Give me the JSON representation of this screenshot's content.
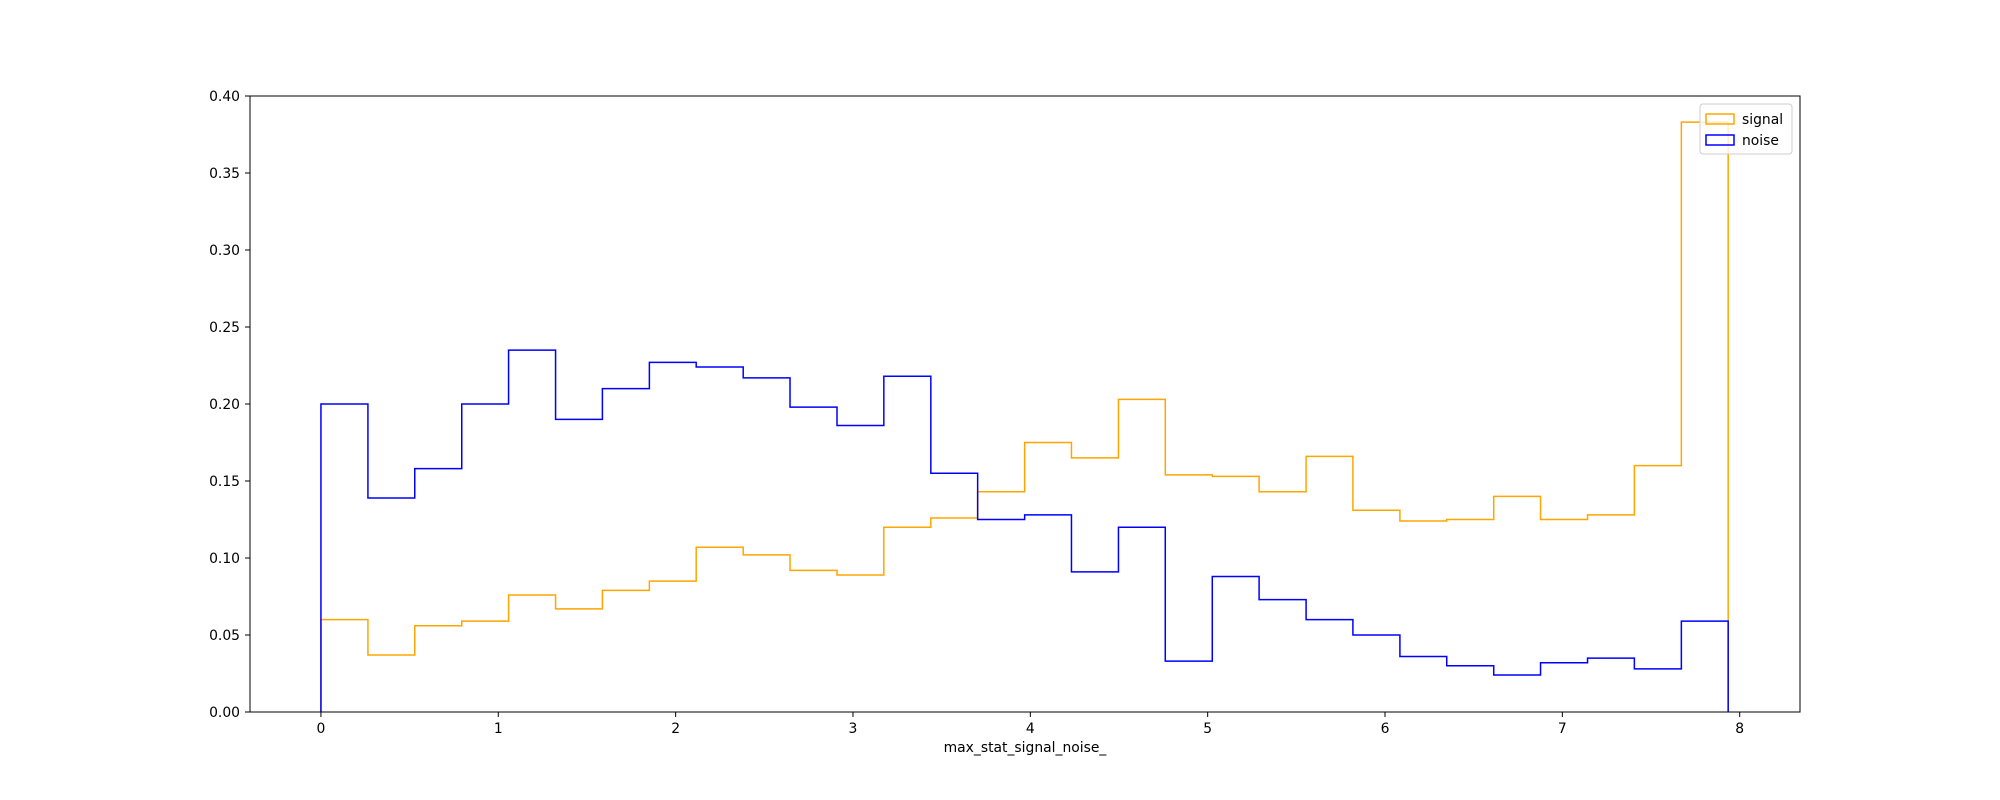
{
  "chart_data": {
    "type": "histogram",
    "xlabel": "max_stat_signal_noise_",
    "ylabel": "",
    "title": "",
    "xlim": [
      -0.4,
      8.34
    ],
    "ylim": [
      0,
      0.4
    ],
    "x_ticks": [
      0,
      1,
      2,
      3,
      4,
      5,
      6,
      7,
      8
    ],
    "y_ticks": [
      0.0,
      0.05,
      0.1,
      0.15,
      0.2,
      0.25,
      0.3,
      0.35,
      0.4
    ],
    "x_tick_labels": [
      "0",
      "1",
      "2",
      "3",
      "4",
      "5",
      "6",
      "7",
      "8"
    ],
    "y_tick_labels": [
      "0.00",
      "0.05",
      "0.10",
      "0.15",
      "0.20",
      "0.25",
      "0.30",
      "0.35",
      "0.40"
    ],
    "bin_edges": [
      0.0,
      0.265,
      0.529,
      0.794,
      1.058,
      1.323,
      1.587,
      1.852,
      2.116,
      2.381,
      2.645,
      2.91,
      3.174,
      3.439,
      3.703,
      3.968,
      4.232,
      4.497,
      4.761,
      5.026,
      5.29,
      5.555,
      5.819,
      6.084,
      6.348,
      6.613,
      6.877,
      7.142,
      7.406,
      7.671,
      7.935
    ],
    "series": [
      {
        "name": "signal",
        "color": "#ffa500",
        "values": [
          0.06,
          0.037,
          0.056,
          0.059,
          0.076,
          0.067,
          0.079,
          0.085,
          0.107,
          0.102,
          0.092,
          0.089,
          0.12,
          0.126,
          0.143,
          0.175,
          0.165,
          0.203,
          0.154,
          0.153,
          0.143,
          0.166,
          0.131,
          0.124,
          0.125,
          0.14,
          0.125,
          0.128,
          0.16,
          0.383
        ]
      },
      {
        "name": "noise",
        "color": "#0000ff",
        "values": [
          0.2,
          0.139,
          0.158,
          0.2,
          0.235,
          0.19,
          0.21,
          0.227,
          0.224,
          0.217,
          0.198,
          0.186,
          0.218,
          0.155,
          0.125,
          0.128,
          0.091,
          0.12,
          0.033,
          0.088,
          0.073,
          0.06,
          0.05,
          0.036,
          0.03,
          0.024,
          0.032,
          0.035,
          0.028,
          0.059
        ]
      }
    ],
    "legend": {
      "position": "top-right",
      "entries": [
        "signal",
        "noise"
      ]
    },
    "grid": false
  }
}
